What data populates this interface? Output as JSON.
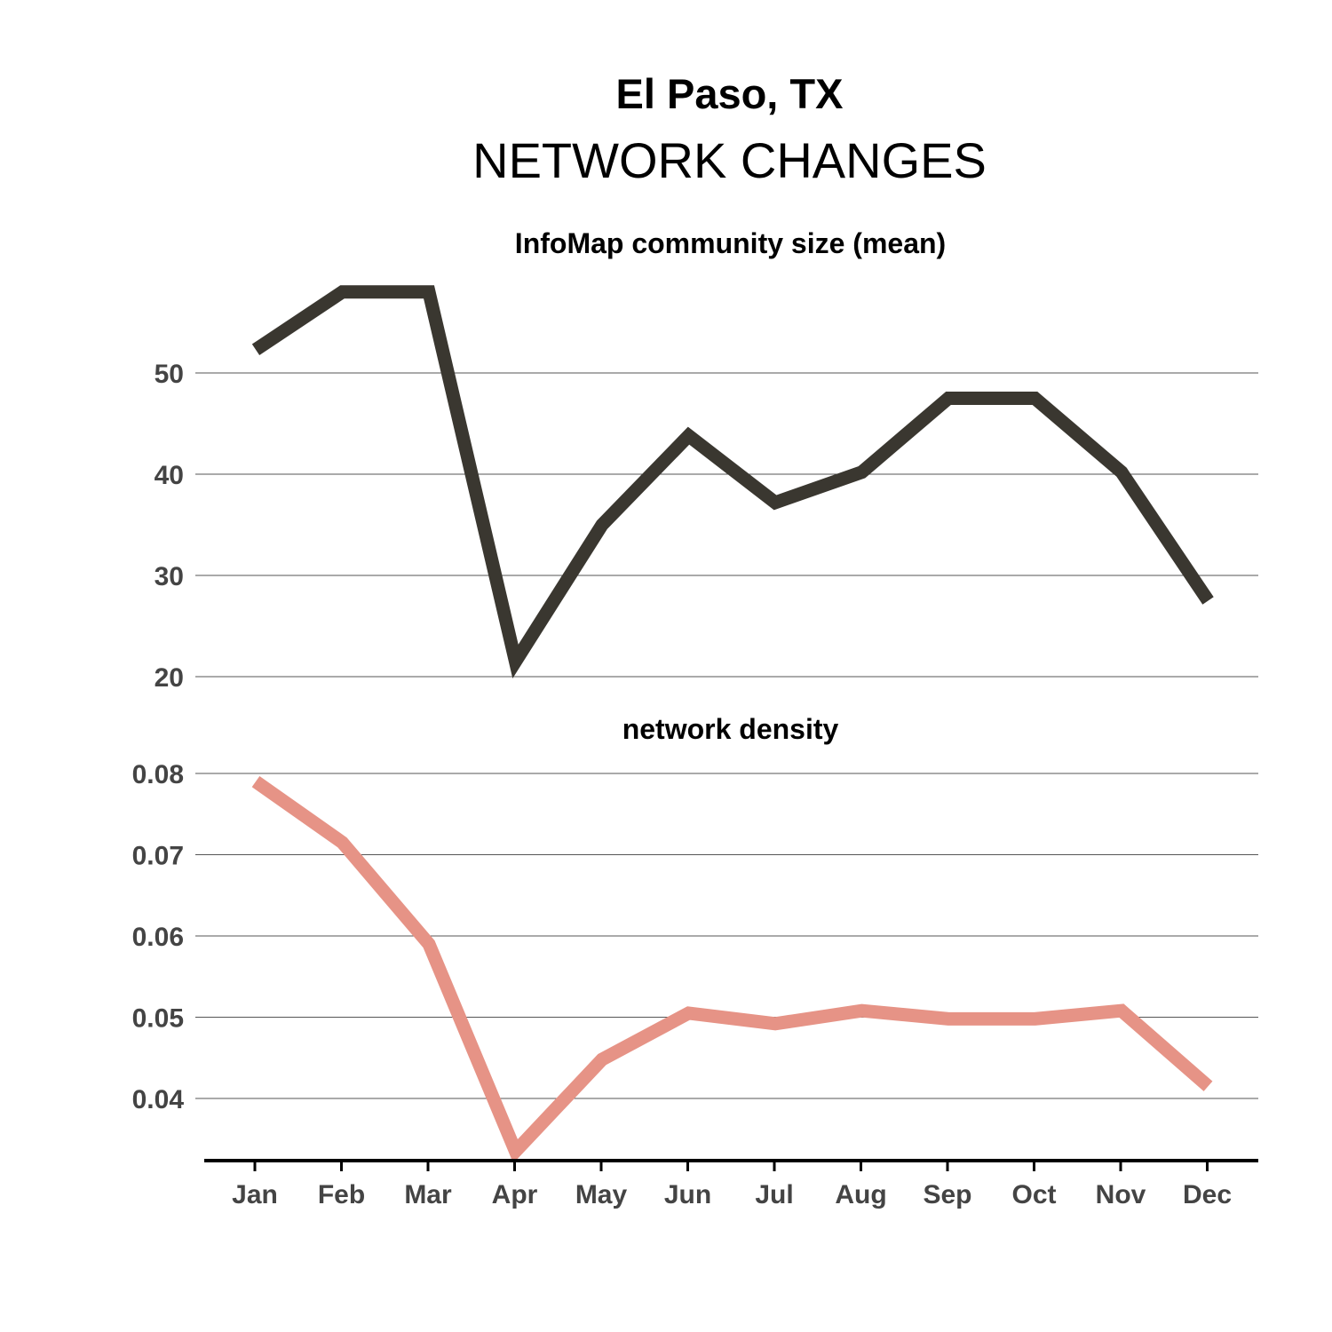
{
  "title": "El Paso, TX",
  "subtitle": "NETWORK CHANGES",
  "colors": {
    "series1": "#3a3730",
    "series2": "#e69386",
    "grid": "#555555",
    "axis": "#000000"
  },
  "chart_data": [
    {
      "type": "line",
      "title": "InfoMap community size (mean)",
      "categories": [
        "Jan",
        "Feb",
        "Mar",
        "Apr",
        "May",
        "Jun",
        "Jul",
        "Aug",
        "Sep",
        "Oct",
        "Nov",
        "Dec"
      ],
      "values": [
        52.3,
        58.0,
        58.0,
        21.5,
        35.0,
        43.8,
        37.2,
        40.2,
        47.5,
        47.5,
        40.2,
        27.5
      ],
      "yticks": [
        "20",
        "30",
        "40",
        "50"
      ],
      "ylim": [
        19.5,
        60
      ],
      "grid": true
    },
    {
      "type": "line",
      "title": "network density",
      "categories": [
        "Jan",
        "Feb",
        "Mar",
        "Apr",
        "May",
        "Jun",
        "Jul",
        "Aug",
        "Sep",
        "Oct",
        "Nov",
        "Dec"
      ],
      "values": [
        0.079,
        0.0715,
        0.059,
        0.0335,
        0.0448,
        0.0505,
        0.0492,
        0.0508,
        0.0498,
        0.0498,
        0.0508,
        0.0415
      ],
      "yticks": [
        "0.04",
        "0.05",
        "0.06",
        "0.07",
        "0.08"
      ],
      "ylim": [
        0.0322,
        0.081
      ],
      "grid": true
    }
  ]
}
